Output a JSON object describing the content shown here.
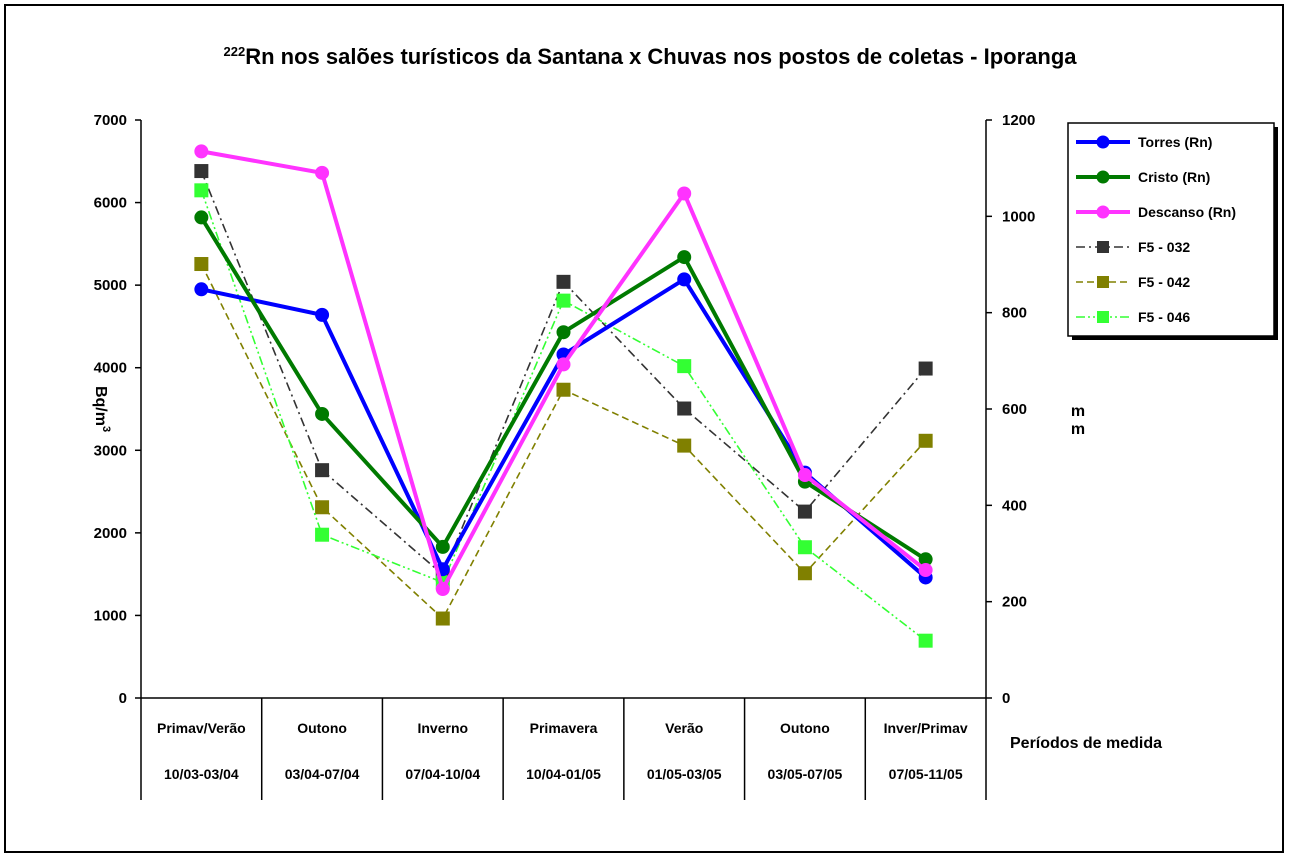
{
  "chart_data": {
    "type": "line",
    "title": {
      "superscript": "222",
      "text": "Rn nos salões turísticos da Santana x Chuvas nos postos de coletas - Iporanga"
    },
    "categories": [
      "Primav/Verão",
      "Outono",
      "Inverno",
      "Primavera",
      "Verão",
      "Outono",
      "Inver/Primav"
    ],
    "category_dates": [
      "10/03-03/04",
      "03/04-07/04",
      "07/04-10/04",
      "10/04-01/05",
      "01/05-03/05",
      "03/05-07/05",
      "07/05-11/05"
    ],
    "xlabel": "Períodos de medida",
    "ylabel_left": {
      "text": "Bq/m",
      "superscript": "3"
    },
    "ylabel_right": "mm",
    "ylim_left": [
      0,
      7000
    ],
    "yticks_left": [
      0,
      1000,
      2000,
      3000,
      4000,
      5000,
      6000,
      7000
    ],
    "ylim_right": [
      0,
      1200
    ],
    "yticks_right": [
      0,
      200,
      400,
      600,
      800,
      1000,
      1200
    ],
    "grid": false,
    "legend_position": "top-right",
    "series": [
      {
        "name": "Torres (Rn)",
        "axis": "left",
        "style": "solid",
        "marker": "circle",
        "color": "#0000ff",
        "values": [
          4950,
          4640,
          1560,
          4160,
          5070,
          2730,
          1460
        ]
      },
      {
        "name": "Cristo (Rn)",
        "axis": "left",
        "style": "solid",
        "marker": "circle",
        "color": "#007a00",
        "values": [
          5820,
          3440,
          1830,
          4430,
          5340,
          2620,
          1680
        ]
      },
      {
        "name": "Descanso (Rn)",
        "axis": "left",
        "style": "solid",
        "marker": "circle",
        "color": "#ff33ff",
        "values": [
          6620,
          6360,
          1320,
          4040,
          6110,
          2700,
          1550
        ]
      },
      {
        "name": "F5 - 032",
        "axis": "right",
        "style": "dashdot",
        "marker": "square",
        "color": "#333333",
        "values": [
          1094,
          473,
          256,
          864,
          601,
          387,
          684
        ]
      },
      {
        "name": "F5 - 042",
        "axis": "right",
        "style": "dashed",
        "marker": "square",
        "color": "#808000",
        "values": [
          901,
          396,
          165,
          640,
          524,
          259,
          534
        ]
      },
      {
        "name": "F5 - 046",
        "axis": "right",
        "style": "dashdotdot",
        "marker": "square",
        "color": "#33ff33",
        "values": [
          1054,
          339,
          240,
          825,
          689,
          313,
          119
        ]
      }
    ]
  }
}
